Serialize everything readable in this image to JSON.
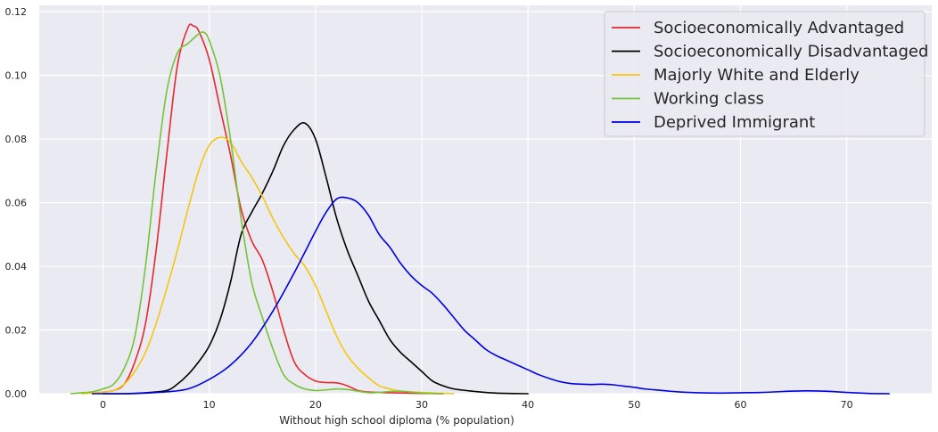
{
  "chart_data": {
    "type": "line",
    "xlabel": "Without high school diploma (% population)",
    "ylabel": "",
    "xlim": [
      -6,
      78
    ],
    "ylim": [
      0,
      0.122
    ],
    "grid": true,
    "legend_position": "top-right",
    "x_ticks": [
      0,
      10,
      20,
      30,
      40,
      50,
      60,
      70
    ],
    "y_ticks": [
      0.0,
      0.02,
      0.04,
      0.06,
      0.08,
      0.1,
      0.12
    ],
    "x_tick_labels": [
      "0",
      "10",
      "20",
      "30",
      "40",
      "50",
      "60",
      "70"
    ],
    "y_tick_labels": [
      "0.00",
      "0.02",
      "0.04",
      "0.06",
      "0.08",
      "0.10",
      "0.12"
    ],
    "series": [
      {
        "name": "Socioeconomically  Advantaged",
        "color": "#e8272c",
        "points": [
          [
            -1,
            0
          ],
          [
            0,
            0.0005
          ],
          [
            1,
            0.001
          ],
          [
            2,
            0.003
          ],
          [
            3,
            0.01
          ],
          [
            4,
            0.022
          ],
          [
            5,
            0.045
          ],
          [
            6,
            0.075
          ],
          [
            7,
            0.103
          ],
          [
            8,
            0.115
          ],
          [
            8.5,
            0.1155
          ],
          [
            9,
            0.114
          ],
          [
            10,
            0.105
          ],
          [
            11,
            0.09
          ],
          [
            12,
            0.075
          ],
          [
            13,
            0.058
          ],
          [
            14,
            0.048
          ],
          [
            15,
            0.042
          ],
          [
            16,
            0.032
          ],
          [
            17,
            0.02
          ],
          [
            18,
            0.01
          ],
          [
            19,
            0.006
          ],
          [
            20,
            0.004
          ],
          [
            21,
            0.0035
          ],
          [
            22,
            0.0034
          ],
          [
            23,
            0.0025
          ],
          [
            24,
            0.001
          ],
          [
            25,
            0.0005
          ],
          [
            27,
            0.0003
          ],
          [
            30,
            0.0001
          ],
          [
            32,
            0
          ]
        ]
      },
      {
        "name": "Socioeconomically Disadvantaged",
        "color": "#000000",
        "points": [
          [
            0,
            0
          ],
          [
            2,
            0
          ],
          [
            4,
            0.0003
          ],
          [
            6,
            0.001
          ],
          [
            7,
            0.003
          ],
          [
            8,
            0.006
          ],
          [
            9,
            0.01
          ],
          [
            10,
            0.015
          ],
          [
            11,
            0.023
          ],
          [
            12,
            0.035
          ],
          [
            13,
            0.05
          ],
          [
            14,
            0.057
          ],
          [
            15,
            0.063
          ],
          [
            16,
            0.07
          ],
          [
            17,
            0.078
          ],
          [
            18,
            0.083
          ],
          [
            19,
            0.085
          ],
          [
            20,
            0.08
          ],
          [
            21,
            0.068
          ],
          [
            22,
            0.055
          ],
          [
            23,
            0.045
          ],
          [
            24,
            0.037
          ],
          [
            25,
            0.029
          ],
          [
            26,
            0.023
          ],
          [
            27,
            0.017
          ],
          [
            28,
            0.013
          ],
          [
            29,
            0.01
          ],
          [
            30,
            0.007
          ],
          [
            31,
            0.004
          ],
          [
            32,
            0.0025
          ],
          [
            33,
            0.0015
          ],
          [
            35,
            0.0007
          ],
          [
            37,
            0.0002
          ],
          [
            40,
            0
          ]
        ]
      },
      {
        "name": "Majorly White and Elderly",
        "color": "#f5c60f",
        "points": [
          [
            -2,
            0
          ],
          [
            0,
            0.0005
          ],
          [
            1,
            0.001
          ],
          [
            2,
            0.003
          ],
          [
            3,
            0.007
          ],
          [
            4,
            0.013
          ],
          [
            5,
            0.022
          ],
          [
            6,
            0.033
          ],
          [
            7,
            0.045
          ],
          [
            8,
            0.058
          ],
          [
            9,
            0.07
          ],
          [
            10,
            0.078
          ],
          [
            11,
            0.0805
          ],
          [
            12,
            0.079
          ],
          [
            13,
            0.073
          ],
          [
            14,
            0.068
          ],
          [
            15,
            0.062
          ],
          [
            16,
            0.055
          ],
          [
            17,
            0.049
          ],
          [
            18,
            0.044
          ],
          [
            19,
            0.04
          ],
          [
            20,
            0.034
          ],
          [
            21,
            0.026
          ],
          [
            22,
            0.018
          ],
          [
            23,
            0.012
          ],
          [
            24,
            0.008
          ],
          [
            25,
            0.005
          ],
          [
            26,
            0.0025
          ],
          [
            27,
            0.0015
          ],
          [
            28,
            0.0008
          ],
          [
            30,
            0.0004
          ],
          [
            33,
            0
          ]
        ]
      },
      {
        "name": "Working class",
        "color": "#76c335",
        "points": [
          [
            -3,
            0
          ],
          [
            -2,
            0.0003
          ],
          [
            -1,
            0.0006
          ],
          [
            0,
            0.0015
          ],
          [
            1,
            0.003
          ],
          [
            2,
            0.008
          ],
          [
            3,
            0.018
          ],
          [
            4,
            0.04
          ],
          [
            5,
            0.07
          ],
          [
            6,
            0.095
          ],
          [
            7,
            0.107
          ],
          [
            8,
            0.11
          ],
          [
            9,
            0.113
          ],
          [
            9.5,
            0.1135
          ],
          [
            10,
            0.111
          ],
          [
            11,
            0.1
          ],
          [
            12,
            0.08
          ],
          [
            13,
            0.055
          ],
          [
            14,
            0.035
          ],
          [
            15,
            0.024
          ],
          [
            16,
            0.014
          ],
          [
            17,
            0.006
          ],
          [
            18,
            0.003
          ],
          [
            19,
            0.0015
          ],
          [
            20,
            0.001
          ],
          [
            21,
            0.0012
          ],
          [
            22,
            0.0015
          ],
          [
            23,
            0.0013
          ],
          [
            24,
            0.0008
          ],
          [
            25,
            0.0003
          ],
          [
            26,
            0.0004
          ],
          [
            27,
            0.0007
          ],
          [
            28,
            0.0008
          ],
          [
            29,
            0.0005
          ],
          [
            30,
            0.0002
          ],
          [
            32,
            0
          ]
        ]
      },
      {
        "name": "Deprived Immigrant",
        "color": "#0000e6",
        "points": [
          [
            -1,
            0
          ],
          [
            2,
            0
          ],
          [
            4,
            0.0002
          ],
          [
            6,
            0.0006
          ],
          [
            8,
            0.0015
          ],
          [
            10,
            0.0045
          ],
          [
            12,
            0.009
          ],
          [
            14,
            0.016
          ],
          [
            16,
            0.026
          ],
          [
            18,
            0.038
          ],
          [
            20,
            0.051
          ],
          [
            21,
            0.057
          ],
          [
            22,
            0.0612
          ],
          [
            23,
            0.0615
          ],
          [
            24,
            0.06
          ],
          [
            25,
            0.056
          ],
          [
            26,
            0.05
          ],
          [
            27,
            0.046
          ],
          [
            28,
            0.041
          ],
          [
            29,
            0.037
          ],
          [
            30,
            0.034
          ],
          [
            31,
            0.0315
          ],
          [
            32,
            0.028
          ],
          [
            33,
            0.024
          ],
          [
            34,
            0.02
          ],
          [
            35,
            0.017
          ],
          [
            36,
            0.014
          ],
          [
            37,
            0.012
          ],
          [
            38,
            0.0105
          ],
          [
            39,
            0.009
          ],
          [
            40,
            0.0075
          ],
          [
            41,
            0.006
          ],
          [
            42,
            0.0048
          ],
          [
            43,
            0.0038
          ],
          [
            44,
            0.0032
          ],
          [
            45,
            0.003
          ],
          [
            46,
            0.0029
          ],
          [
            47,
            0.003
          ],
          [
            48,
            0.0028
          ],
          [
            49,
            0.0024
          ],
          [
            50,
            0.002
          ],
          [
            51,
            0.0015
          ],
          [
            52,
            0.0012
          ],
          [
            53,
            0.0009
          ],
          [
            54,
            0.0006
          ],
          [
            56,
            0.0003
          ],
          [
            58,
            0.0002
          ],
          [
            60,
            0.0003
          ],
          [
            62,
            0.0004
          ],
          [
            64,
            0.0007
          ],
          [
            66,
            0.0009
          ],
          [
            68,
            0.0008
          ],
          [
            70,
            0.0004
          ],
          [
            72,
            0.0001
          ],
          [
            74,
            0
          ]
        ]
      }
    ]
  }
}
